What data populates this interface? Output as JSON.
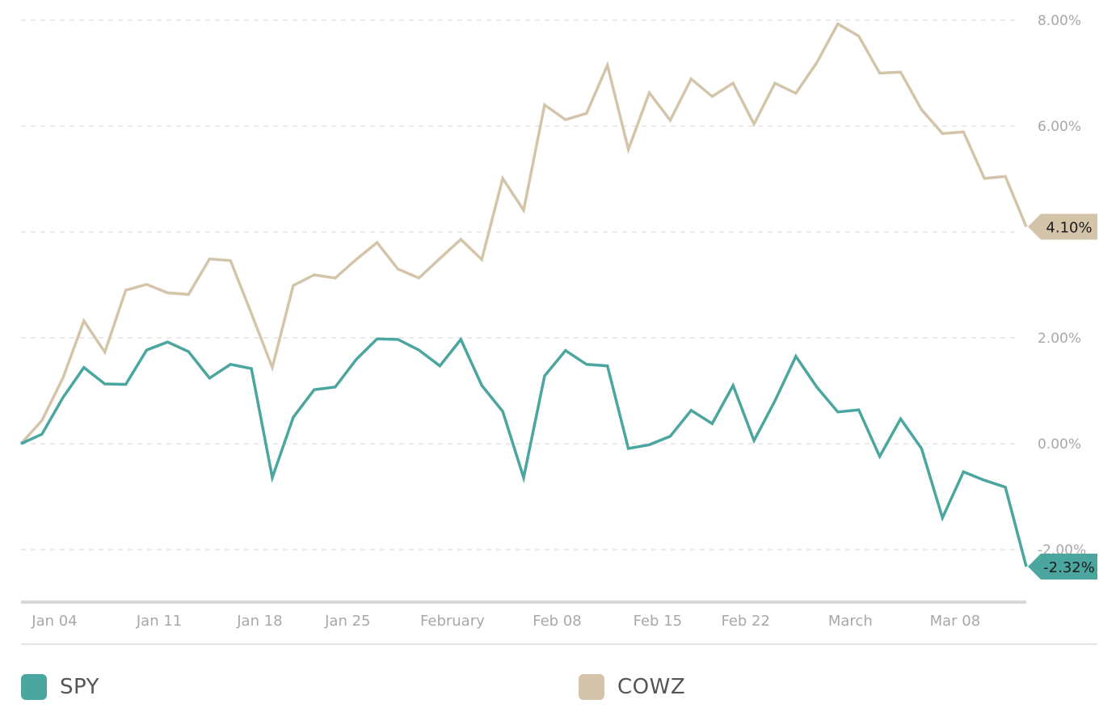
{
  "chart_data": {
    "type": "line",
    "title": "",
    "xlabel": "",
    "ylabel": "",
    "ylim": [
      -2.9,
      8.3
    ],
    "grid": true,
    "legend_position": "bottom",
    "y_ticks": [
      "8.00%",
      "6.00%",
      "4.00%",
      "2.00%",
      "0.00%",
      "-2.00%"
    ],
    "y_tick_values": [
      8,
      6,
      4,
      2,
      0,
      -2
    ],
    "x_tick_labels": [
      "Jan 04",
      "Jan 11",
      "Jan 18",
      "Jan 25",
      "February",
      "Feb 08",
      "Feb 15",
      "Feb 22",
      "March",
      "Mar 08"
    ],
    "x_tick_index": [
      1.6,
      6.6,
      11.4,
      15.6,
      20.6,
      25.6,
      30.4,
      34.6,
      39.6,
      44.6
    ],
    "series": [
      {
        "name": "SPY",
        "color": "#4aa69e",
        "end_label": "-2.32%",
        "values": [
          0.0,
          0.18,
          0.87,
          1.44,
          1.13,
          1.12,
          1.77,
          1.92,
          1.74,
          1.24,
          1.5,
          1.42,
          -0.64,
          0.5,
          1.02,
          1.07,
          1.59,
          1.98,
          1.97,
          1.77,
          1.47,
          1.97,
          1.1,
          0.61,
          -0.64,
          1.28,
          1.76,
          1.5,
          1.47,
          -0.09,
          -0.02,
          0.14,
          0.63,
          0.38,
          1.1,
          0.06,
          0.81,
          1.65,
          1.07,
          0.6,
          0.64,
          -0.24,
          0.47,
          -0.09,
          -1.4,
          -0.53,
          -0.69,
          -0.82,
          -2.32
        ]
      },
      {
        "name": "COWZ",
        "color": "#d4c5aa",
        "end_label": "4.10%",
        "values": [
          0.0,
          0.44,
          1.24,
          2.32,
          1.73,
          2.9,
          3.01,
          2.85,
          2.82,
          3.49,
          3.46,
          2.46,
          1.44,
          2.99,
          3.19,
          3.13,
          3.48,
          3.8,
          3.3,
          3.13,
          3.5,
          3.86,
          3.48,
          5.01,
          4.41,
          6.4,
          6.12,
          6.24,
          7.15,
          5.56,
          6.63,
          6.11,
          6.89,
          6.56,
          6.81,
          6.04,
          6.81,
          6.62,
          7.2,
          7.93,
          7.7,
          7.0,
          7.02,
          6.31,
          5.86,
          5.89,
          5.01,
          5.05,
          4.1
        ]
      }
    ]
  },
  "legend": {
    "items": [
      {
        "label": "SPY",
        "color": "#4aa69e"
      },
      {
        "label": "COWZ",
        "color": "#d4c5aa"
      }
    ]
  }
}
